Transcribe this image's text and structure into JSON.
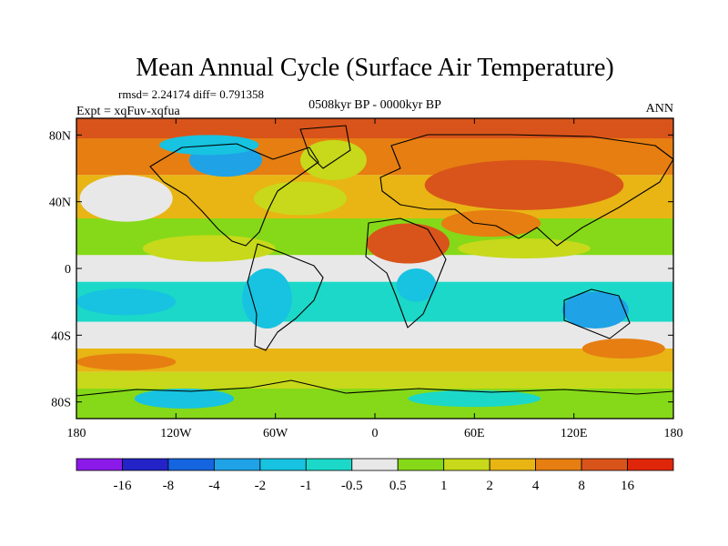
{
  "chart_data": {
    "type": "heatmap",
    "title": "Mean Annual Cycle (Surface Air Temperature)",
    "stats_text": "rmsd= 2.24174 diff= 0.791358",
    "left_label": "Expt = xqFuv-xqfua",
    "center_label": "0508kyr BP - 0000kyr BP",
    "right_label": "ANN",
    "x_ticks": [
      {
        "value": -180,
        "label": "180"
      },
      {
        "value": -120,
        "label": "120W"
      },
      {
        "value": -60,
        "label": "60W"
      },
      {
        "value": 0,
        "label": "0"
      },
      {
        "value": 60,
        "label": "60E"
      },
      {
        "value": 120,
        "label": "120E"
      },
      {
        "value": 180,
        "label": "180"
      }
    ],
    "y_ticks": [
      {
        "value": 80,
        "label": "80N"
      },
      {
        "value": 40,
        "label": "40N"
      },
      {
        "value": 0,
        "label": "0"
      },
      {
        "value": -40,
        "label": "40S"
      },
      {
        "value": -80,
        "label": "80S"
      }
    ],
    "xlim": [
      -180,
      180
    ],
    "ylim": [
      -90,
      90
    ],
    "colorbar": {
      "levels": [
        "-16",
        "-8",
        "-4",
        "-2",
        "-1",
        "-0.5",
        "0.5",
        "1",
        "2",
        "4",
        "8",
        "16"
      ],
      "colors": [
        "#8b1ae8",
        "#2323c8",
        "#1565e0",
        "#1fa2e6",
        "#17c3e0",
        "#1cd8c8",
        "#e8e8e8",
        "#86d918",
        "#c7d91a",
        "#e8b514",
        "#e67e12",
        "#d9541a",
        "#e0260a"
      ]
    },
    "zones": [
      {
        "lat0": 90,
        "lat1": 78,
        "level": "8"
      },
      {
        "lat0": 78,
        "lat1": 56,
        "level": "4"
      },
      {
        "lat0": 56,
        "lat1": 30,
        "level": "2"
      },
      {
        "lat0": 30,
        "lat1": 8,
        "level": "0.5"
      },
      {
        "lat0": 8,
        "lat1": -8,
        "level": "-0.5"
      },
      {
        "lat0": -8,
        "lat1": -32,
        "level": "-1"
      },
      {
        "lat0": -32,
        "lat1": -48,
        "level": "-0.5"
      },
      {
        "lat0": -48,
        "lat1": -62,
        "level": "2"
      },
      {
        "lat0": -62,
        "lat1": -72,
        "level": "1"
      },
      {
        "lat0": -72,
        "lat1": -90,
        "level": "0.5"
      }
    ],
    "patches": [
      {
        "cx": -25,
        "cy": 65,
        "rx": 20,
        "ry": 12,
        "level": "1"
      },
      {
        "cx": -90,
        "cy": 65,
        "rx": 22,
        "ry": 10,
        "level": "-4"
      },
      {
        "cx": -100,
        "cy": 74,
        "rx": 30,
        "ry": 6,
        "level": "-2"
      },
      {
        "cx": -150,
        "cy": 42,
        "rx": 28,
        "ry": 14,
        "level": "-0.5"
      },
      {
        "cx": -45,
        "cy": 42,
        "rx": 28,
        "ry": 10,
        "level": "1"
      },
      {
        "cx": -100,
        "cy": 40,
        "rx": 20,
        "ry": 10,
        "level": "2"
      },
      {
        "cx": 90,
        "cy": 50,
        "rx": 60,
        "ry": 15,
        "level": "8"
      },
      {
        "cx": 20,
        "cy": 15,
        "rx": 25,
        "ry": 12,
        "level": "8"
      },
      {
        "cx": 70,
        "cy": 27,
        "rx": 30,
        "ry": 8,
        "level": "4"
      },
      {
        "cx": -100,
        "cy": 12,
        "rx": 40,
        "ry": 8,
        "level": "1"
      },
      {
        "cx": 90,
        "cy": 12,
        "rx": 40,
        "ry": 6,
        "level": "1"
      },
      {
        "cx": -150,
        "cy": -20,
        "rx": 30,
        "ry": 8,
        "level": "-2"
      },
      {
        "cx": -65,
        "cy": -18,
        "rx": 15,
        "ry": 18,
        "level": "-2"
      },
      {
        "cx": 25,
        "cy": -10,
        "rx": 12,
        "ry": 10,
        "level": "-2"
      },
      {
        "cx": 133,
        "cy": -25,
        "rx": 20,
        "ry": 11,
        "level": "-4"
      },
      {
        "cx": 150,
        "cy": -48,
        "rx": 25,
        "ry": 6,
        "level": "4"
      },
      {
        "cx": -150,
        "cy": -56,
        "rx": 30,
        "ry": 5,
        "level": "4"
      },
      {
        "cx": -115,
        "cy": -78,
        "rx": 30,
        "ry": 6,
        "level": "-2"
      },
      {
        "cx": 60,
        "cy": -78,
        "rx": 40,
        "ry": 5,
        "level": "-1"
      }
    ]
  }
}
